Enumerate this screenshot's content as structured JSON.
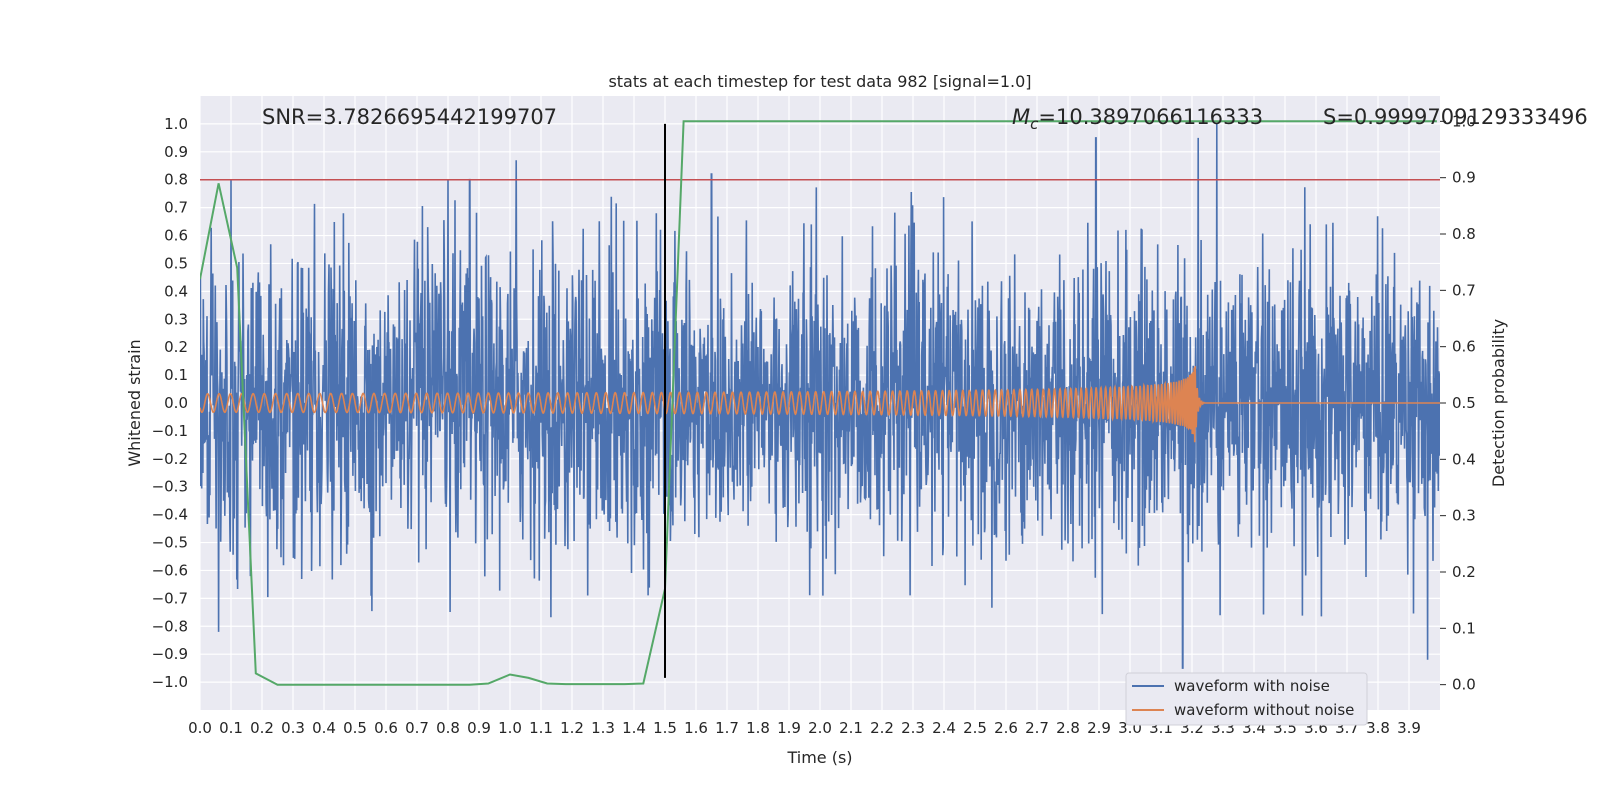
{
  "chart_data": {
    "type": "line",
    "title": "stats at each timestep for test data 982 [signal=1.0]",
    "xlabel": "Time (s)",
    "ylabel": "Whitened strain",
    "y2label": "Detection probability",
    "xlim": [
      0.0,
      4.0
    ],
    "ylim": [
      -1.1,
      1.1
    ],
    "y2lim": [
      -0.045,
      1.045
    ],
    "xticks": [
      "0.0",
      "0.1",
      "0.2",
      "0.3",
      "0.4",
      "0.5",
      "0.6",
      "0.7",
      "0.8",
      "0.9",
      "1.0",
      "1.1",
      "1.2",
      "1.3",
      "1.4",
      "1.5",
      "1.6",
      "1.7",
      "1.8",
      "1.9",
      "2.0",
      "2.1",
      "2.2",
      "2.3",
      "2.4",
      "2.5",
      "2.6",
      "2.7",
      "2.8",
      "2.9",
      "3.0",
      "3.1",
      "3.2",
      "3.3",
      "3.4",
      "3.5",
      "3.6",
      "3.7",
      "3.8",
      "3.9"
    ],
    "yticks": [
      "1.0",
      "0.9",
      "0.8",
      "0.7",
      "0.6",
      "0.5",
      "0.4",
      "0.3",
      "0.2",
      "0.1",
      "0.0",
      "−0.1",
      "−0.2",
      "−0.3",
      "−0.4",
      "−0.5",
      "−0.6",
      "−0.7",
      "−0.8",
      "−0.9",
      "−1.0"
    ],
    "y2ticks": [
      "1.0",
      "0.9",
      "0.8",
      "0.7",
      "0.6",
      "0.5",
      "0.4",
      "0.3",
      "0.2",
      "0.1",
      "0.0"
    ],
    "grid": true,
    "legend": "lower-right",
    "annotations": {
      "snr": "SNR=3.7826695442199707",
      "mc": "=10.3897066116333",
      "mc_symbol": "M",
      "mc_sub": "c",
      "s": "S=0.9999709129333496"
    },
    "threshold_line": {
      "y": 0.8,
      "color": "#c44e52"
    },
    "vertical_marker": {
      "x": 1.5,
      "color": "#000000"
    },
    "series": [
      {
        "name": "waveform with noise",
        "color": "#4c72b0",
        "axis": "left",
        "description_only": false,
        "sample_rate": 2048,
        "peaks": [
          [
            0.06,
            -0.82
          ],
          [
            0.1,
            0.8
          ],
          [
            0.8,
            0.8
          ],
          [
            0.87,
            0.8
          ],
          [
            1.02,
            0.87
          ],
          [
            1.65,
            0.82
          ],
          [
            2.89,
            0.95
          ],
          [
            3.22,
            0.95
          ],
          [
            3.28,
            1.0
          ],
          [
            3.17,
            -0.95
          ],
          [
            3.96,
            -0.92
          ]
        ]
      },
      {
        "name": "waveform without noise",
        "color": "#dd8452",
        "axis": "left",
        "chirp_end": 3.21,
        "amplitude_start": 0.006,
        "amplitude_end": 0.15
      },
      {
        "name": "detection probability",
        "color": "#55a868",
        "axis": "right",
        "x": [
          0.0,
          0.06,
          0.12,
          0.18,
          0.25,
          0.31,
          0.37,
          0.43,
          0.5,
          0.56,
          0.62,
          0.68,
          0.75,
          0.81,
          0.87,
          0.93,
          1.0,
          1.06,
          1.12,
          1.18,
          1.25,
          1.31,
          1.37,
          1.43,
          1.5,
          1.56,
          1.62,
          1.68,
          1.75,
          1.81,
          1.87,
          1.93,
          2.0,
          2.1,
          2.2,
          2.3,
          2.4,
          2.5,
          2.6,
          2.7,
          2.8,
          2.9,
          3.0,
          3.1,
          3.2,
          3.3,
          3.4,
          3.5,
          3.6,
          3.7,
          3.8,
          3.9,
          3.99
        ],
        "y": [
          0.72,
          0.89,
          0.74,
          0.02,
          0.0,
          0.0,
          0.0,
          0.0,
          0.0,
          0.0,
          0.0,
          0.0,
          0.0,
          0.0,
          0.0,
          0.002,
          0.018,
          0.012,
          0.002,
          0.001,
          0.001,
          0.001,
          0.001,
          0.002,
          0.17,
          1.0,
          1.0,
          1.0,
          1.0,
          1.0,
          1.0,
          1.0,
          1.0,
          1.0,
          1.0,
          1.0,
          1.0,
          1.0,
          1.0,
          1.0,
          1.0,
          1.0,
          1.0,
          1.0,
          1.0,
          1.0,
          1.0,
          1.0,
          1.0,
          1.0,
          1.0,
          1.0,
          1.0
        ]
      }
    ]
  }
}
